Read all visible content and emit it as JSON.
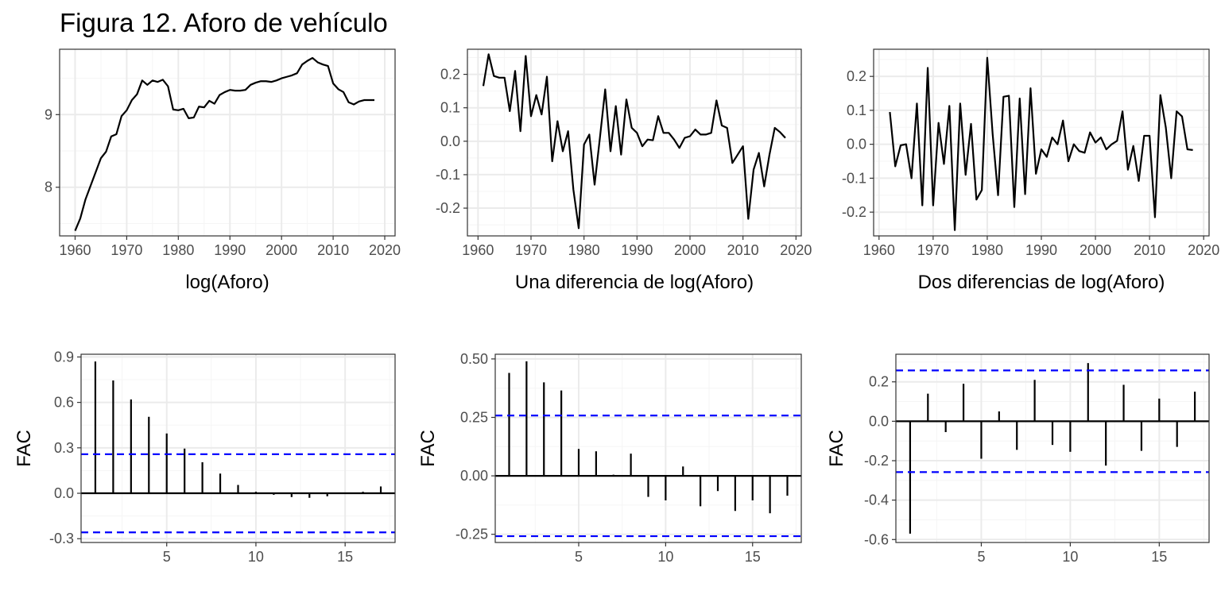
{
  "title": "Figura 12. Aforo de vehículo",
  "colors": {
    "line": "#000000",
    "ci": "#0000ff",
    "grid_major": "#ebebeb",
    "grid_minor": "#f5f5f5",
    "border": "#333333",
    "tick_text": "#4d4d4d"
  },
  "chart_data": [
    {
      "type": "line",
      "xlabel": "log(Aforo)",
      "ylabel": "",
      "xlim": [
        1957,
        2022
      ],
      "ylim": [
        7.33,
        9.9
      ],
      "x_ticks": [
        1960,
        1970,
        1980,
        1990,
        2000,
        2010,
        2020
      ],
      "x_tick_labels": [
        "1960",
        "1970",
        "1980",
        "1990",
        "2000",
        "2010",
        "2020"
      ],
      "y_ticks": [
        8,
        9
      ],
      "y_tick_labels": [
        "8",
        "9"
      ],
      "grid": true,
      "series": [
        {
          "x": [
            1960,
            1961,
            1962,
            1963,
            1964,
            1965,
            1966,
            1967,
            1968,
            1969,
            1970,
            1971,
            1972,
            1973,
            1974,
            1975,
            1976,
            1977,
            1978,
            1979,
            1980,
            1981,
            1982,
            1983,
            1984,
            1985,
            1986,
            1987,
            1988,
            1989,
            1990,
            1991,
            1992,
            1993,
            1994,
            1995,
            1996,
            1997,
            1998,
            1999,
            2000,
            2001,
            2002,
            2003,
            2004,
            2005,
            2006,
            2007,
            2008,
            2009,
            2010,
            2011,
            2012,
            2013,
            2014,
            2015,
            2016,
            2017,
            2018
          ],
          "values": [
            7.4,
            7.57,
            7.83,
            8.02,
            8.21,
            8.4,
            8.49,
            8.7,
            8.73,
            8.98,
            9.06,
            9.2,
            9.28,
            9.47,
            9.41,
            9.47,
            9.45,
            9.48,
            9.39,
            9.07,
            9.06,
            9.08,
            8.95,
            8.96,
            9.11,
            9.1,
            9.19,
            9.15,
            9.27,
            9.31,
            9.34,
            9.33,
            9.33,
            9.34,
            9.41,
            9.44,
            9.46,
            9.46,
            9.45,
            9.47,
            9.5,
            9.52,
            9.54,
            9.57,
            9.69,
            9.74,
            9.78,
            9.72,
            9.69,
            9.67,
            9.43,
            9.35,
            9.31,
            9.17,
            9.14,
            9.18,
            9.2,
            9.2,
            9.2
          ]
        }
      ]
    },
    {
      "type": "line",
      "xlabel": "Una diferencia de log(Aforo)",
      "ylabel": "",
      "xlim": [
        1958,
        2021
      ],
      "ylim": [
        -0.283,
        0.275
      ],
      "x_ticks": [
        1960,
        1970,
        1980,
        1990,
        2000,
        2010,
        2020
      ],
      "x_tick_labels": [
        "1960",
        "1970",
        "1980",
        "1990",
        "2000",
        "2010",
        "2020"
      ],
      "y_ticks": [
        -0.2,
        -0.1,
        0.0,
        0.1,
        0.2
      ],
      "y_tick_labels": [
        "-0.2",
        "-0.1",
        "0.0",
        "0.1",
        "0.2"
      ],
      "grid": true,
      "series": [
        {
          "x": [
            1961,
            1962,
            1963,
            1964,
            1965,
            1966,
            1967,
            1968,
            1969,
            1970,
            1971,
            1972,
            1973,
            1974,
            1975,
            1976,
            1977,
            1978,
            1979,
            1980,
            1981,
            1982,
            1983,
            1984,
            1985,
            1986,
            1987,
            1988,
            1989,
            1990,
            1991,
            1992,
            1993,
            1994,
            1995,
            1996,
            1997,
            1998,
            1999,
            2000,
            2001,
            2002,
            2003,
            2004,
            2005,
            2006,
            2007,
            2008,
            2009,
            2010,
            2011,
            2012,
            2013,
            2014,
            2015,
            2016,
            2017,
            2018
          ],
          "values": [
            0.165,
            0.26,
            0.195,
            0.19,
            0.19,
            0.09,
            0.21,
            0.03,
            0.255,
            0.075,
            0.138,
            0.08,
            0.193,
            -0.06,
            0.06,
            -0.03,
            0.03,
            -0.145,
            -0.26,
            -0.01,
            0.02,
            -0.13,
            0.01,
            0.155,
            -0.03,
            0.105,
            -0.04,
            0.125,
            0.04,
            0.025,
            -0.015,
            0.005,
            0.003,
            0.075,
            0.025,
            0.025,
            0.005,
            -0.02,
            0.01,
            0.015,
            0.035,
            0.02,
            0.02,
            0.025,
            0.122,
            0.047,
            0.04,
            -0.065,
            -0.04,
            -0.015,
            -0.232,
            -0.085,
            -0.035,
            -0.135,
            -0.04,
            0.04,
            0.027,
            0.01
          ]
        }
      ]
    },
    {
      "type": "line",
      "xlabel": "Dos diferencias de log(Aforo)",
      "ylabel": "",
      "xlim": [
        1959,
        2021
      ],
      "ylim": [
        -0.27,
        0.28
      ],
      "x_ticks": [
        1960,
        1970,
        1980,
        1990,
        2000,
        2010,
        2020
      ],
      "x_tick_labels": [
        "1960",
        "1970",
        "1980",
        "1990",
        "2000",
        "2010",
        "2020"
      ],
      "y_ticks": [
        -0.2,
        -0.1,
        0.0,
        0.1,
        0.2
      ],
      "y_tick_labels": [
        "-0.2",
        "-0.1",
        "0.0",
        "0.1",
        "0.2"
      ],
      "grid": true,
      "series": [
        {
          "x": [
            1962,
            1963,
            1964,
            1965,
            1966,
            1967,
            1968,
            1969,
            1970,
            1971,
            1972,
            1973,
            1974,
            1975,
            1976,
            1977,
            1978,
            1979,
            1980,
            1981,
            1982,
            1983,
            1984,
            1985,
            1986,
            1987,
            1988,
            1989,
            1990,
            1991,
            1992,
            1993,
            1994,
            1995,
            1996,
            1997,
            1998,
            1999,
            2000,
            2001,
            2002,
            2003,
            2004,
            2005,
            2006,
            2007,
            2008,
            2009,
            2010,
            2011,
            2012,
            2013,
            2014,
            2015,
            2016,
            2017,
            2018
          ],
          "values": [
            0.095,
            -0.065,
            -0.003,
            0.0,
            -0.1,
            0.12,
            -0.18,
            0.225,
            -0.18,
            0.063,
            -0.058,
            0.113,
            -0.253,
            0.12,
            -0.09,
            0.06,
            -0.163,
            -0.135,
            0.255,
            0.03,
            -0.15,
            0.14,
            0.143,
            -0.185,
            0.135,
            -0.147,
            0.165,
            -0.087,
            -0.015,
            -0.037,
            0.02,
            0.0,
            0.07,
            -0.05,
            0.0,
            -0.02,
            -0.025,
            0.035,
            0.005,
            0.02,
            -0.015,
            0.0,
            0.01,
            0.097,
            -0.075,
            -0.005,
            -0.108,
            0.025,
            0.025,
            -0.215,
            0.145,
            0.05,
            -0.1,
            0.097,
            0.082,
            -0.015,
            -0.017
          ]
        }
      ]
    },
    {
      "type": "bar",
      "subtype": "acf",
      "xlabel": "",
      "ylabel": "FAC",
      "xlim": [
        0.2,
        17.8
      ],
      "ylim": [
        -0.325,
        0.918
      ],
      "x_ticks": [
        5,
        10,
        15
      ],
      "x_tick_labels": [
        "5",
        "10",
        "15"
      ],
      "y_ticks": [
        -0.3,
        0.0,
        0.3,
        0.6,
        0.9
      ],
      "y_tick_labels": [
        "-0.3",
        "0.0",
        "0.3",
        "0.6",
        "0.9"
      ],
      "ci": 0.258,
      "grid": true,
      "lags": [
        1,
        2,
        3,
        4,
        5,
        6,
        7,
        8,
        9,
        10,
        11,
        12,
        13,
        14,
        15,
        16,
        17
      ],
      "values": [
        0.87,
        0.745,
        0.62,
        0.505,
        0.395,
        0.295,
        0.205,
        0.13,
        0.055,
        0.01,
        -0.01,
        -0.025,
        -0.03,
        -0.02,
        -0.005,
        0.01,
        0.045
      ]
    },
    {
      "type": "bar",
      "subtype": "acf",
      "xlabel": "",
      "ylabel": "FAC",
      "xlim": [
        0.2,
        17.8
      ],
      "ylim": [
        -0.285,
        0.52
      ],
      "x_ticks": [
        5,
        10,
        15
      ],
      "x_tick_labels": [
        "5",
        "10",
        "15"
      ],
      "y_ticks": [
        -0.25,
        0.0,
        0.25,
        0.5
      ],
      "y_tick_labels": [
        "-0.25",
        "0.00",
        "0.25",
        "0.50"
      ],
      "ci": 0.258,
      "grid": true,
      "lags": [
        1,
        2,
        3,
        4,
        5,
        6,
        7,
        8,
        9,
        10,
        11,
        12,
        13,
        14,
        15,
        16,
        17
      ],
      "values": [
        0.44,
        0.49,
        0.4,
        0.365,
        0.115,
        0.105,
        0.005,
        0.095,
        -0.09,
        -0.105,
        0.04,
        -0.13,
        -0.065,
        -0.15,
        -0.105,
        -0.16,
        -0.085
      ]
    },
    {
      "type": "bar",
      "subtype": "acf",
      "xlabel": "",
      "ylabel": "FAC",
      "xlim": [
        0.2,
        17.8
      ],
      "ylim": [
        -0.615,
        0.34
      ],
      "x_ticks": [
        5,
        10,
        15
      ],
      "x_tick_labels": [
        "5",
        "10",
        "15"
      ],
      "y_ticks": [
        -0.6,
        -0.4,
        -0.2,
        0.0,
        0.2
      ],
      "y_tick_labels": [
        "-0.6",
        "-0.4",
        "-0.2",
        "0.0",
        "0.2"
      ],
      "ci": 0.258,
      "grid": true,
      "lags": [
        1,
        2,
        3,
        4,
        5,
        6,
        7,
        8,
        9,
        10,
        11,
        12,
        13,
        14,
        15,
        16,
        17
      ],
      "values": [
        -0.57,
        0.14,
        -0.055,
        0.19,
        -0.19,
        0.05,
        -0.145,
        0.21,
        -0.12,
        -0.155,
        0.295,
        -0.225,
        0.185,
        -0.15,
        0.115,
        -0.13,
        0.15
      ]
    }
  ]
}
